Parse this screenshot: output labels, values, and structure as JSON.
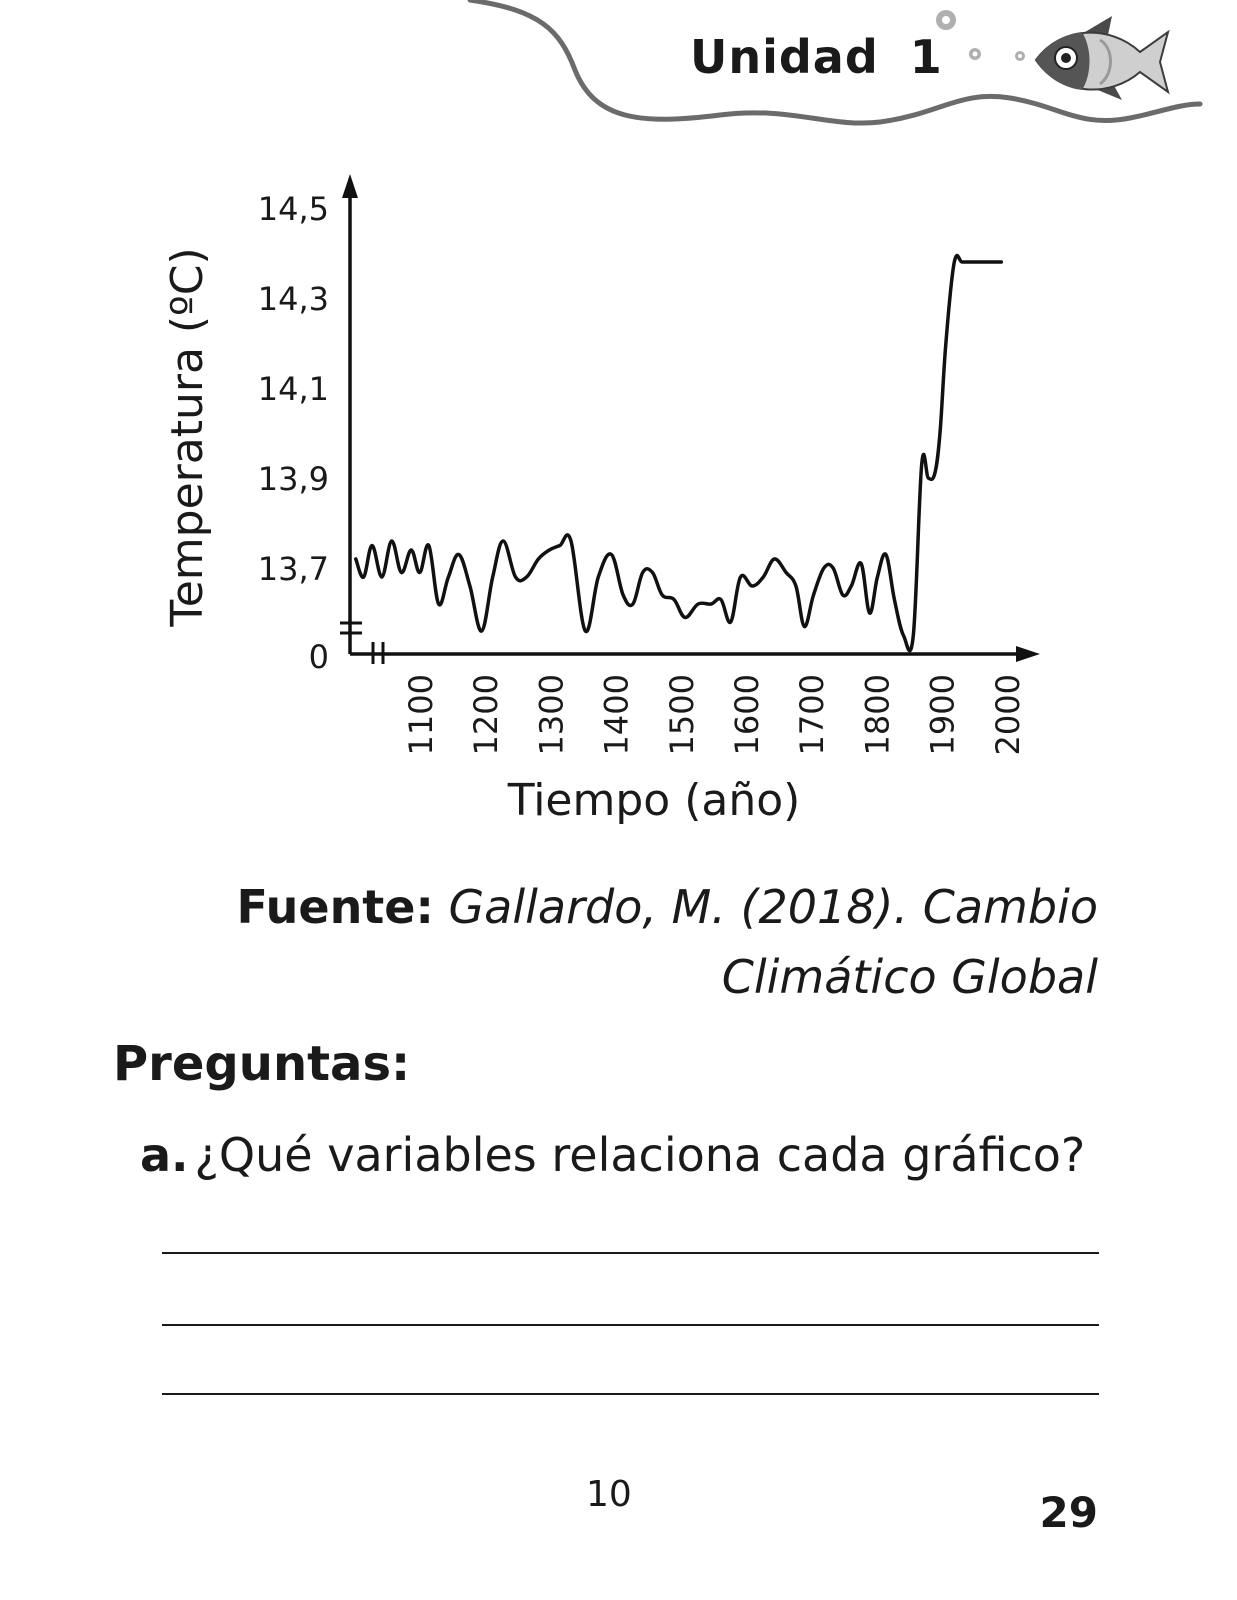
{
  "header": {
    "unit_label": "Unidad 1",
    "icon": "fish-icon",
    "bubbles_icon": "bubbles-icon",
    "wave_color": "#6b6b6b"
  },
  "chart_data": {
    "type": "line",
    "title": "",
    "xlabel": "Tiempo (año)",
    "ylabel": "Temperatura (ºC)",
    "x_ticks": [
      "1100",
      "1200",
      "1300",
      "1400",
      "1500",
      "1600",
      "1700",
      "1800",
      "1900",
      "2000"
    ],
    "y_ticks": [
      "0",
      "13,7",
      "13,9",
      "14,1",
      "14,3",
      "14,5"
    ],
    "axis_breaks": true,
    "ylim": [
      13.5,
      14.5
    ],
    "xlim": [
      1000,
      2050
    ],
    "line_color": "#111111",
    "series": [
      {
        "x": [
          1000,
          1012,
          1025,
          1040,
          1055,
          1070,
          1085,
          1098,
          1112,
          1127,
          1142,
          1158,
          1175,
          1193,
          1210,
          1226,
          1245,
          1262,
          1280,
          1297,
          1313,
          1330,
          1352,
          1372,
          1392,
          1410,
          1425,
          1440,
          1455,
          1470,
          1488,
          1505,
          1525,
          1545,
          1560,
          1575,
          1590,
          1608,
          1625,
          1642,
          1660,
          1675,
          1688,
          1702,
          1718,
          1732,
          1747,
          1760,
          1775,
          1788,
          1800,
          1813,
          1826,
          1840,
          1855,
          1868,
          1878,
          1888,
          1896,
          1905,
          1918,
          1930,
          1945,
          1960,
          1975,
          1990
        ],
        "y": [
          13.72,
          13.68,
          13.75,
          13.68,
          13.76,
          13.69,
          13.74,
          13.69,
          13.75,
          13.62,
          13.68,
          13.73,
          13.66,
          13.56,
          13.68,
          13.76,
          13.68,
          13.68,
          13.72,
          13.74,
          13.75,
          13.76,
          13.56,
          13.68,
          13.73,
          13.64,
          13.62,
          13.69,
          13.69,
          13.64,
          13.63,
          13.59,
          13.62,
          13.62,
          13.63,
          13.58,
          13.68,
          13.66,
          13.68,
          13.72,
          13.69,
          13.66,
          13.57,
          13.64,
          13.7,
          13.7,
          13.64,
          13.66,
          13.71,
          13.6,
          13.68,
          13.73,
          13.63,
          13.55,
          13.55,
          13.93,
          13.9,
          13.91,
          14.0,
          14.2,
          14.38,
          14.38,
          14.38,
          14.38,
          14.38,
          14.38
        ]
      }
    ]
  },
  "source": {
    "label": "Fuente:",
    "text_line1": "Gallardo, M. (2018). Cambio",
    "text_line2": "Climático Global"
  },
  "questions": {
    "title": "Preguntas:",
    "items": [
      {
        "letter": "a.",
        "text": "¿Qué variables relaciona cada gráfico?"
      }
    ]
  },
  "footer": {
    "sub_page": "10",
    "page_number": "29"
  }
}
